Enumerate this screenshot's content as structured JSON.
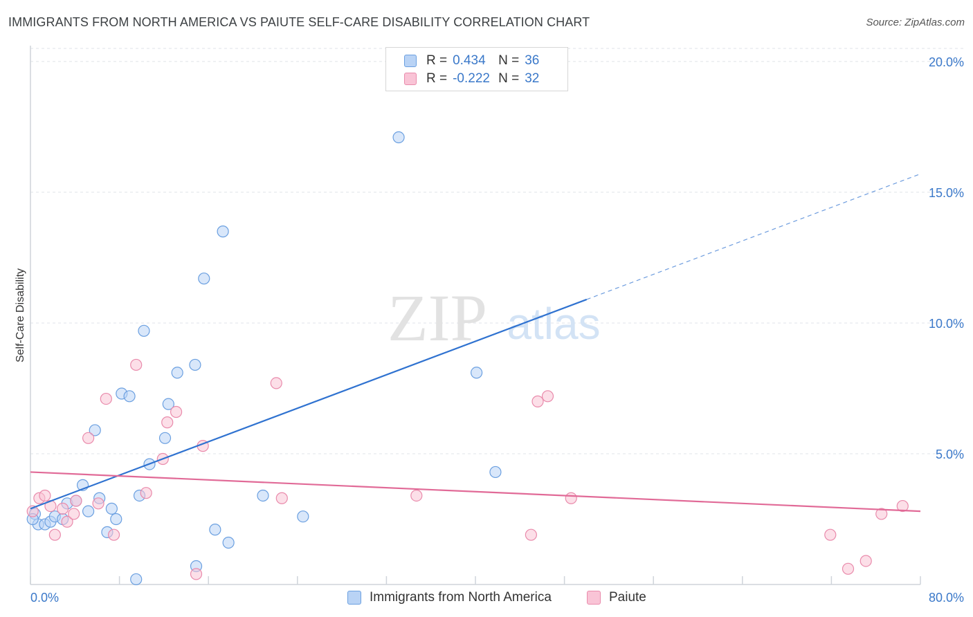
{
  "title": "IMMIGRANTS FROM NORTH AMERICA VS PAIUTE SELF-CARE DISABILITY CORRELATION CHART",
  "source": "Source: ZipAtlas.com",
  "watermark": {
    "zip": "ZIP",
    "atlas": "atlas"
  },
  "legend": {
    "rows": [
      {
        "r_label": "R =",
        "r_value": "0.434",
        "n_label": "N =",
        "n_value": "36"
      },
      {
        "r_label": "R =",
        "r_value": "-0.222",
        "n_label": "N =",
        "n_value": "32"
      }
    ]
  },
  "bottom_legend": {
    "series1": "Immigrants from North America",
    "series2": "Paiute"
  },
  "colors": {
    "blue_fill": "#b9d3f5",
    "blue_stroke": "#6a9fe0",
    "blue_line": "#2f72d0",
    "pink_fill": "#f9c4d6",
    "pink_stroke": "#e98aab",
    "pink_line": "#e16a97",
    "tick_text": "#3a78c9",
    "grid": "#dfe3e8"
  },
  "chart_data": {
    "type": "scatter",
    "title": "IMMIGRANTS FROM NORTH AMERICA VS PAIUTE SELF-CARE DISABILITY CORRELATION CHART",
    "xlabel": "",
    "ylabel": "Self-Care Disability",
    "xlim": [
      0,
      80
    ],
    "ylim": [
      0,
      20.5
    ],
    "x_tick_labels": [
      "0.0%",
      "80.0%"
    ],
    "y_ticks": [
      5,
      10,
      15,
      20
    ],
    "y_tick_labels": [
      "5.0%",
      "10.0%",
      "15.0%",
      "20.0%"
    ],
    "grid": true,
    "legend_position": "top-center",
    "series": [
      {
        "name": "Immigrants from North America",
        "r": 0.434,
        "n": 36,
        "points": [
          [
            0.4,
            2.7
          ],
          [
            0.7,
            2.3
          ],
          [
            1.3,
            2.3
          ],
          [
            1.8,
            2.4
          ],
          [
            2.2,
            2.6
          ],
          [
            2.9,
            2.5
          ],
          [
            3.3,
            3.1
          ],
          [
            4.1,
            3.2
          ],
          [
            4.7,
            3.8
          ],
          [
            5.2,
            2.8
          ],
          [
            5.8,
            5.9
          ],
          [
            6.2,
            3.3
          ],
          [
            6.9,
            2.0
          ],
          [
            7.3,
            2.9
          ],
          [
            7.7,
            2.5
          ],
          [
            8.2,
            7.3
          ],
          [
            8.9,
            7.2
          ],
          [
            9.5,
            0.2
          ],
          [
            9.8,
            3.4
          ],
          [
            10.2,
            9.7
          ],
          [
            10.7,
            4.6
          ],
          [
            12.1,
            5.6
          ],
          [
            12.4,
            6.9
          ],
          [
            13.2,
            8.1
          ],
          [
            14.8,
            8.4
          ],
          [
            14.9,
            0.7
          ],
          [
            15.6,
            11.7
          ],
          [
            16.6,
            2.1
          ],
          [
            17.3,
            13.5
          ],
          [
            17.8,
            1.6
          ],
          [
            20.9,
            3.4
          ],
          [
            24.5,
            2.6
          ],
          [
            33.1,
            17.1
          ],
          [
            40.1,
            8.1
          ],
          [
            41.8,
            4.3
          ],
          [
            0.2,
            2.5
          ]
        ],
        "trend": {
          "x0": 0,
          "y0": 2.9,
          "x1": 50,
          "y1": 10.9,
          "dashed_to_x": 80,
          "dashed_to_y": 15.7
        }
      },
      {
        "name": "Paiute",
        "r": -0.222,
        "n": 32,
        "points": [
          [
            0.2,
            2.8
          ],
          [
            0.8,
            3.3
          ],
          [
            1.3,
            3.4
          ],
          [
            1.8,
            3.0
          ],
          [
            2.2,
            1.9
          ],
          [
            2.9,
            2.9
          ],
          [
            3.3,
            2.4
          ],
          [
            3.9,
            2.7
          ],
          [
            4.1,
            3.2
          ],
          [
            5.2,
            5.6
          ],
          [
            6.1,
            3.1
          ],
          [
            6.8,
            7.1
          ],
          [
            7.5,
            1.9
          ],
          [
            9.5,
            8.4
          ],
          [
            10.4,
            3.5
          ],
          [
            11.9,
            4.8
          ],
          [
            12.3,
            6.2
          ],
          [
            13.1,
            6.6
          ],
          [
            14.9,
            0.4
          ],
          [
            15.5,
            5.3
          ],
          [
            22.1,
            7.7
          ],
          [
            22.6,
            3.3
          ],
          [
            34.7,
            3.4
          ],
          [
            45.0,
            1.9
          ],
          [
            45.6,
            7.0
          ],
          [
            46.5,
            7.2
          ],
          [
            48.6,
            3.3
          ],
          [
            71.9,
            1.9
          ],
          [
            73.5,
            0.6
          ],
          [
            75.1,
            0.9
          ],
          [
            76.5,
            2.7
          ],
          [
            78.4,
            3.0
          ]
        ],
        "trend": {
          "x0": 0,
          "y0": 4.3,
          "x1": 80,
          "y1": 2.8
        }
      }
    ]
  }
}
